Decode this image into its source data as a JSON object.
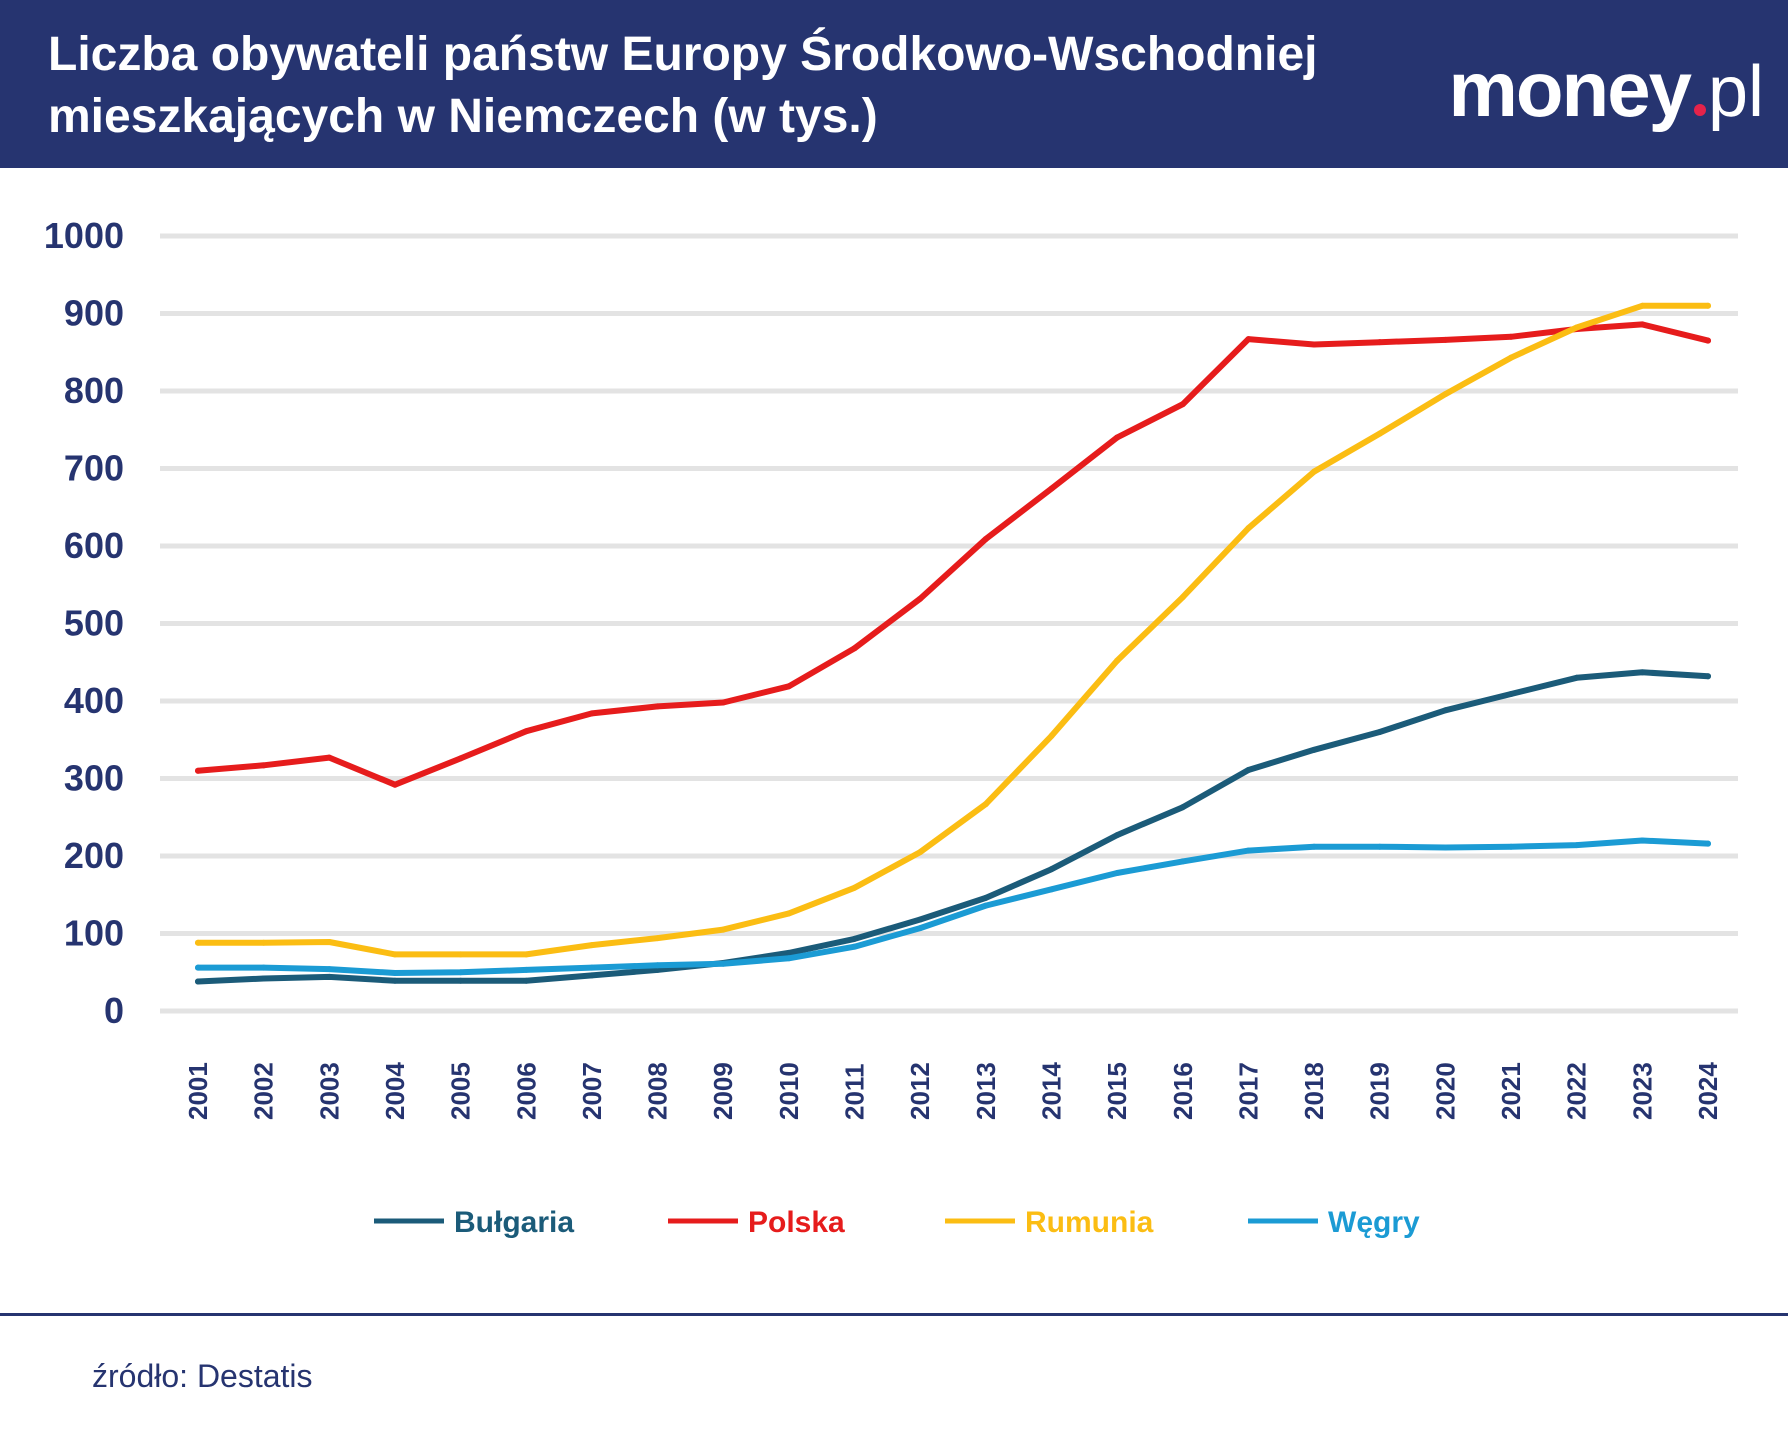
{
  "header": {
    "title_line1": "Liczba obywateli państw Europy Środkowo-Wschodniej",
    "title_line2": "mieszkających w Niemczech (w tys.)",
    "logo_brand": "money",
    "logo_tld": "pl"
  },
  "footer": {
    "source": "źródło: Destatis"
  },
  "colors": {
    "header_bg": "#263470",
    "grid": "#e3e3e3",
    "axis_text": "#263470",
    "logo_dot": "#e5234a"
  },
  "chart_data": {
    "type": "line",
    "title": "Liczba obywateli państw Europy Środkowo-Wschodniej mieszkających w Niemczech (w tys.)",
    "xlabel": "",
    "ylabel": "",
    "ylim": [
      0,
      1000
    ],
    "yticks": [
      "0",
      "100",
      "200",
      "300",
      "400",
      "500",
      "600",
      "700",
      "800",
      "900",
      "1000"
    ],
    "grid": true,
    "legend_position": "bottom",
    "categories": [
      "2001",
      "2002",
      "2003",
      "2004",
      "2005",
      "2006",
      "2007",
      "2008",
      "2009",
      "2010",
      "2011",
      "2012",
      "2013",
      "2014",
      "2015",
      "2016",
      "2017",
      "2018",
      "2019",
      "2020",
      "2021",
      "2022",
      "2023",
      "2024"
    ],
    "series": [
      {
        "name": "Bułgaria",
        "color": "#1b5b79",
        "values": [
          38,
          42,
          44,
          39,
          39,
          39,
          46,
          53,
          62,
          75,
          93,
          118,
          146,
          183,
          227,
          263,
          311,
          337,
          360,
          388,
          409,
          430,
          437,
          432
        ]
      },
      {
        "name": "Polska",
        "color": "#e61c1c",
        "values": [
          310,
          317,
          327,
          292,
          326,
          361,
          384,
          393,
          398,
          419,
          468,
          532,
          609,
          674,
          740,
          783,
          867,
          860,
          863,
          866,
          870,
          880,
          886,
          865
        ]
      },
      {
        "name": "Rumunia",
        "color": "#fbbd13",
        "values": [
          88,
          88,
          89,
          73,
          73,
          73,
          85,
          94,
          105,
          126,
          159,
          205,
          267,
          355,
          452,
          534,
          623,
          696,
          745,
          796,
          843,
          882,
          910,
          910
        ]
      },
      {
        "name": "Węgry",
        "color": "#1b9bd4",
        "values": [
          56,
          56,
          54,
          49,
          50,
          53,
          56,
          59,
          61,
          68,
          83,
          107,
          136,
          157,
          178,
          193,
          207,
          212,
          212,
          211,
          212,
          214,
          220,
          216
        ]
      }
    ]
  }
}
